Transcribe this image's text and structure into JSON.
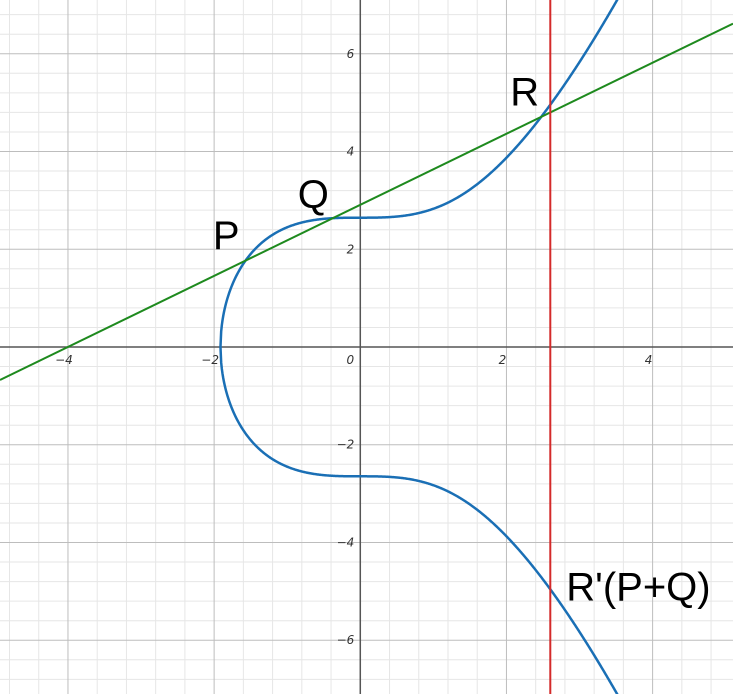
{
  "chart_data": {
    "type": "line",
    "title": "",
    "xlabel": "",
    "ylabel": "",
    "xlim": [
      -4.93,
      5.1
    ],
    "ylim": [
      -7.1,
      7.1
    ],
    "grid": true,
    "minor_grid_step": 0.4,
    "major_grid_step": 2,
    "x_ticks": [
      -4,
      -2,
      0,
      2,
      4
    ],
    "y_ticks": [
      -6,
      -4,
      -2,
      2,
      4,
      6
    ],
    "x_tick_labels": [
      "−4",
      "−2",
      "0",
      "2",
      "4"
    ],
    "y_tick_labels": [
      "−6",
      "−4",
      "−2",
      "2",
      "4",
      "6"
    ],
    "series": [
      {
        "kind": "curve",
        "equation": "y^2 = x^3 + 7",
        "color": "#1a6fb5",
        "x_min": -1.913,
        "x_max": 3.7
      },
      {
        "kind": "line",
        "equation": "y = 0.727x + 2.909",
        "slope": 0.727,
        "intercept": 2.909,
        "color": "#1e8a1e"
      },
      {
        "kind": "vertical",
        "x": 2.6,
        "color": "#d42a2a"
      }
    ],
    "points": [
      {
        "label": "P",
        "x": -1.58,
        "y": 1.76
      },
      {
        "label": "Q",
        "x": -0.5,
        "y": 2.56
      },
      {
        "label": "R",
        "x": 2.6,
        "y": 4.9
      },
      {
        "label": "R'(P+Q)",
        "x": 2.6,
        "y": -4.9
      }
    ]
  }
}
